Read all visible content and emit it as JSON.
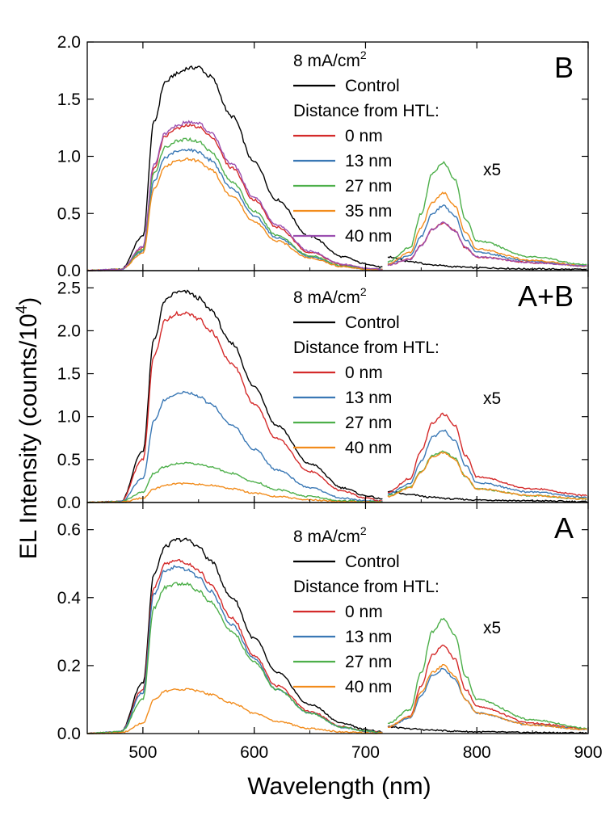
{
  "figure": {
    "xlabel": "Wavelength (nm)",
    "ylabel_main": "EL Intensity (counts/10",
    "ylabel_sup": "4",
    "ylabel_tail": ")"
  },
  "colors": {
    "Control": "#000000",
    "0 nm": "#d42a2a",
    "13 nm": "#3a78b5",
    "27 nm": "#4daf4a",
    "35 nm": "#f28c1c",
    "40 nm": "#9b4fb0"
  },
  "chart_data": [
    {
      "type": "line",
      "panel_label": "B",
      "xlim": [
        450,
        900
      ],
      "ylim": [
        0,
        2.0
      ],
      "xticks": [
        "500",
        "600",
        "700",
        "800",
        "900"
      ],
      "yticks": [
        "0.0",
        "0.5",
        "1.0",
        "1.5",
        "2.0"
      ],
      "legend": {
        "header_main": "8 mA/cm",
        "header_sup": "2",
        "subheader": "Distance from HTL:",
        "placement": "top-right"
      },
      "multiplier_label": "x5",
      "segment_split_x": 720,
      "series": [
        {
          "name": "Control",
          "color": "#000000",
          "x": [
            450,
            480,
            500,
            510,
            520,
            530,
            540,
            550,
            560,
            580,
            600,
            620,
            650,
            680,
            700,
            715,
            720,
            740,
            760,
            780,
            800,
            850,
            900
          ],
          "y": [
            0,
            0.01,
            0.3,
            1.3,
            1.65,
            1.72,
            1.77,
            1.78,
            1.7,
            1.35,
            0.95,
            0.62,
            0.3,
            0.12,
            0.06,
            0.03,
            0.12,
            0.08,
            0.05,
            0.035,
            0.025,
            0.015,
            0.01
          ]
        },
        {
          "name": "0 nm",
          "color": "#d42a2a",
          "x": [
            450,
            480,
            500,
            510,
            520,
            530,
            540,
            550,
            560,
            580,
            600,
            620,
            650,
            680,
            700,
            715,
            720,
            740,
            750,
            760,
            770,
            780,
            790,
            800,
            850,
            900
          ],
          "y": [
            0,
            0.01,
            0.2,
            0.9,
            1.18,
            1.24,
            1.27,
            1.26,
            1.18,
            0.9,
            0.62,
            0.38,
            0.16,
            0.05,
            0.02,
            0.01,
            0.05,
            0.1,
            0.22,
            0.36,
            0.42,
            0.35,
            0.2,
            0.12,
            0.07,
            0.04
          ]
        },
        {
          "name": "13 nm",
          "color": "#3a78b5",
          "x": [
            450,
            480,
            500,
            510,
            520,
            530,
            540,
            550,
            560,
            580,
            600,
            620,
            650,
            680,
            700,
            715,
            720,
            740,
            750,
            760,
            770,
            780,
            790,
            800,
            850,
            900
          ],
          "y": [
            0,
            0.01,
            0.17,
            0.78,
            0.99,
            1.04,
            1.06,
            1.04,
            0.97,
            0.72,
            0.48,
            0.29,
            0.12,
            0.04,
            0.015,
            0.01,
            0.06,
            0.13,
            0.3,
            0.5,
            0.57,
            0.48,
            0.27,
            0.16,
            0.08,
            0.04
          ]
        },
        {
          "name": "27 nm",
          "color": "#4daf4a",
          "x": [
            450,
            480,
            500,
            510,
            520,
            530,
            540,
            550,
            560,
            580,
            600,
            620,
            650,
            680,
            700,
            715,
            720,
            740,
            750,
            760,
            770,
            780,
            790,
            800,
            850,
            900
          ],
          "y": [
            0,
            0.01,
            0.18,
            0.85,
            1.08,
            1.13,
            1.15,
            1.13,
            1.05,
            0.78,
            0.52,
            0.31,
            0.13,
            0.04,
            0.015,
            0.01,
            0.08,
            0.2,
            0.5,
            0.85,
            0.95,
            0.8,
            0.45,
            0.26,
            0.12,
            0.05
          ]
        },
        {
          "name": "35 nm",
          "color": "#f28c1c",
          "x": [
            450,
            480,
            500,
            510,
            520,
            530,
            540,
            550,
            560,
            580,
            600,
            620,
            650,
            680,
            700,
            715,
            720,
            740,
            750,
            760,
            770,
            780,
            790,
            800,
            850,
            900
          ],
          "y": [
            0,
            0.01,
            0.15,
            0.72,
            0.91,
            0.96,
            0.98,
            0.96,
            0.89,
            0.65,
            0.43,
            0.26,
            0.11,
            0.035,
            0.013,
            0.01,
            0.06,
            0.16,
            0.38,
            0.6,
            0.68,
            0.57,
            0.33,
            0.19,
            0.09,
            0.04
          ]
        },
        {
          "name": "40 nm",
          "color": "#9b4fb0",
          "x": [
            450,
            480,
            500,
            510,
            520,
            530,
            540,
            550,
            560,
            580,
            600,
            620,
            650,
            680,
            700,
            715,
            720,
            740,
            750,
            760,
            770,
            780,
            790,
            800,
            850,
            900
          ],
          "y": [
            0,
            0.01,
            0.21,
            0.93,
            1.2,
            1.27,
            1.3,
            1.29,
            1.21,
            0.93,
            0.64,
            0.4,
            0.17,
            0.055,
            0.022,
            0.01,
            0.05,
            0.1,
            0.22,
            0.36,
            0.42,
            0.35,
            0.2,
            0.12,
            0.07,
            0.04
          ]
        }
      ]
    },
    {
      "type": "line",
      "panel_label": "A+B",
      "xlim": [
        450,
        900
      ],
      "ylim": [
        0,
        2.7
      ],
      "xticks": [
        "500",
        "600",
        "700",
        "800",
        "900"
      ],
      "yticks": [
        "0.0",
        "0.5",
        "1.0",
        "1.5",
        "2.0",
        "2.5"
      ],
      "legend": {
        "header_main": "8 mA/cm",
        "header_sup": "2",
        "subheader": "Distance from HTL:",
        "placement": "top-right"
      },
      "multiplier_label": "x5",
      "segment_split_x": 720,
      "series": [
        {
          "name": "Control",
          "color": "#000000",
          "x": [
            450,
            480,
            500,
            510,
            520,
            530,
            540,
            550,
            560,
            580,
            600,
            620,
            650,
            680,
            700,
            715,
            720,
            740,
            760,
            780,
            800,
            850,
            900
          ],
          "y": [
            0,
            0.01,
            0.6,
            1.9,
            2.35,
            2.45,
            2.45,
            2.38,
            2.25,
            1.85,
            1.35,
            0.9,
            0.45,
            0.17,
            0.08,
            0.04,
            0.13,
            0.09,
            0.06,
            0.04,
            0.03,
            0.02,
            0.01
          ]
        },
        {
          "name": "0 nm",
          "color": "#d42a2a",
          "x": [
            450,
            480,
            500,
            510,
            520,
            530,
            540,
            550,
            560,
            580,
            600,
            620,
            650,
            680,
            700,
            715,
            720,
            740,
            750,
            760,
            770,
            780,
            790,
            800,
            850,
            900
          ],
          "y": [
            0,
            0.01,
            0.5,
            1.7,
            2.12,
            2.2,
            2.2,
            2.14,
            2.0,
            1.62,
            1.15,
            0.75,
            0.36,
            0.13,
            0.05,
            0.02,
            0.12,
            0.28,
            0.6,
            0.92,
            1.03,
            0.9,
            0.55,
            0.3,
            0.16,
            0.08
          ]
        },
        {
          "name": "13 nm",
          "color": "#3a78b5",
          "x": [
            450,
            480,
            500,
            510,
            520,
            530,
            540,
            550,
            560,
            580,
            600,
            620,
            650,
            680,
            700,
            715,
            720,
            740,
            750,
            760,
            770,
            780,
            790,
            800,
            850,
            900
          ],
          "y": [
            0,
            0.01,
            0.28,
            0.95,
            1.2,
            1.27,
            1.28,
            1.24,
            1.15,
            0.9,
            0.62,
            0.38,
            0.17,
            0.05,
            0.02,
            0.01,
            0.1,
            0.22,
            0.48,
            0.76,
            0.84,
            0.72,
            0.43,
            0.23,
            0.12,
            0.06
          ]
        },
        {
          "name": "27 nm",
          "color": "#4daf4a",
          "x": [
            450,
            480,
            500,
            510,
            520,
            530,
            540,
            550,
            560,
            580,
            600,
            620,
            650,
            680,
            700,
            715,
            720,
            740,
            750,
            760,
            770,
            780,
            790,
            800,
            850,
            900
          ],
          "y": [
            0,
            0.01,
            0.12,
            0.34,
            0.42,
            0.45,
            0.46,
            0.45,
            0.42,
            0.34,
            0.24,
            0.15,
            0.07,
            0.02,
            0.01,
            0.005,
            0.08,
            0.18,
            0.36,
            0.55,
            0.6,
            0.52,
            0.3,
            0.16,
            0.08,
            0.04
          ]
        },
        {
          "name": "40 nm",
          "color": "#f28c1c",
          "x": [
            450,
            480,
            500,
            510,
            520,
            530,
            540,
            550,
            560,
            580,
            600,
            620,
            650,
            680,
            700,
            715,
            720,
            740,
            750,
            760,
            770,
            780,
            790,
            800,
            850,
            900
          ],
          "y": [
            0,
            0.005,
            0.05,
            0.16,
            0.2,
            0.22,
            0.22,
            0.21,
            0.2,
            0.16,
            0.11,
            0.07,
            0.03,
            0.01,
            0.005,
            0.003,
            0.07,
            0.17,
            0.35,
            0.53,
            0.58,
            0.5,
            0.3,
            0.16,
            0.08,
            0.04
          ]
        }
      ]
    },
    {
      "type": "line",
      "panel_label": "A",
      "xlim": [
        450,
        900
      ],
      "ylim": [
        0,
        0.68
      ],
      "xticks": [
        "500",
        "600",
        "700",
        "800",
        "900"
      ],
      "yticks": [
        "0.0",
        "0.2",
        "0.4",
        "0.6"
      ],
      "xlabel": "Wavelength (nm)",
      "legend": {
        "header_main": "8 mA/cm",
        "header_sup": "2",
        "subheader": "Distance from HTL:",
        "placement": "top-right"
      },
      "multiplier_label": "x5",
      "segment_split_x": 720,
      "series": [
        {
          "name": "Control",
          "color": "#000000",
          "x": [
            450,
            480,
            500,
            510,
            520,
            530,
            540,
            550,
            560,
            580,
            600,
            620,
            650,
            680,
            700,
            715,
            720,
            740,
            760,
            780,
            800,
            850,
            900
          ],
          "y": [
            0,
            0.005,
            0.15,
            0.47,
            0.55,
            0.57,
            0.57,
            0.55,
            0.51,
            0.4,
            0.28,
            0.18,
            0.085,
            0.03,
            0.012,
            0.005,
            0.02,
            0.014,
            0.01,
            0.007,
            0.005,
            0.003,
            0.002
          ]
        },
        {
          "name": "0 nm",
          "color": "#d42a2a",
          "x": [
            450,
            480,
            500,
            510,
            520,
            530,
            540,
            550,
            560,
            580,
            600,
            620,
            650,
            680,
            700,
            715,
            720,
            740,
            750,
            760,
            770,
            780,
            790,
            800,
            850,
            900
          ],
          "y": [
            0,
            0.005,
            0.13,
            0.43,
            0.5,
            0.51,
            0.5,
            0.48,
            0.44,
            0.34,
            0.23,
            0.14,
            0.065,
            0.02,
            0.008,
            0.003,
            0.02,
            0.05,
            0.14,
            0.23,
            0.26,
            0.22,
            0.13,
            0.08,
            0.03,
            0.015
          ]
        },
        {
          "name": "13 nm",
          "color": "#3a78b5",
          "x": [
            450,
            480,
            500,
            510,
            520,
            530,
            540,
            550,
            560,
            580,
            600,
            620,
            650,
            680,
            700,
            715,
            720,
            740,
            750,
            760,
            770,
            780,
            790,
            800,
            850,
            900
          ],
          "y": [
            0,
            0.005,
            0.12,
            0.41,
            0.48,
            0.49,
            0.48,
            0.46,
            0.42,
            0.32,
            0.22,
            0.13,
            0.06,
            0.018,
            0.007,
            0.003,
            0.02,
            0.045,
            0.11,
            0.17,
            0.19,
            0.16,
            0.1,
            0.06,
            0.025,
            0.012
          ]
        },
        {
          "name": "27 nm",
          "color": "#4daf4a",
          "x": [
            450,
            480,
            500,
            510,
            520,
            530,
            540,
            550,
            560,
            580,
            600,
            620,
            650,
            680,
            700,
            715,
            720,
            740,
            750,
            760,
            770,
            780,
            790,
            800,
            850,
            900
          ],
          "y": [
            0,
            0.005,
            0.1,
            0.37,
            0.43,
            0.44,
            0.44,
            0.42,
            0.39,
            0.3,
            0.21,
            0.13,
            0.06,
            0.018,
            0.007,
            0.003,
            0.03,
            0.07,
            0.18,
            0.3,
            0.34,
            0.29,
            0.17,
            0.1,
            0.04,
            0.015
          ]
        },
        {
          "name": "40 nm",
          "color": "#f28c1c",
          "x": [
            450,
            480,
            500,
            510,
            520,
            530,
            540,
            550,
            560,
            580,
            600,
            620,
            650,
            680,
            700,
            715,
            720,
            740,
            750,
            760,
            770,
            780,
            790,
            800,
            850,
            900
          ],
          "y": [
            0,
            0.002,
            0.03,
            0.1,
            0.125,
            0.13,
            0.13,
            0.125,
            0.115,
            0.09,
            0.06,
            0.036,
            0.015,
            0.005,
            0.002,
            0.001,
            0.02,
            0.05,
            0.12,
            0.18,
            0.2,
            0.17,
            0.1,
            0.06,
            0.025,
            0.012
          ]
        }
      ]
    }
  ]
}
